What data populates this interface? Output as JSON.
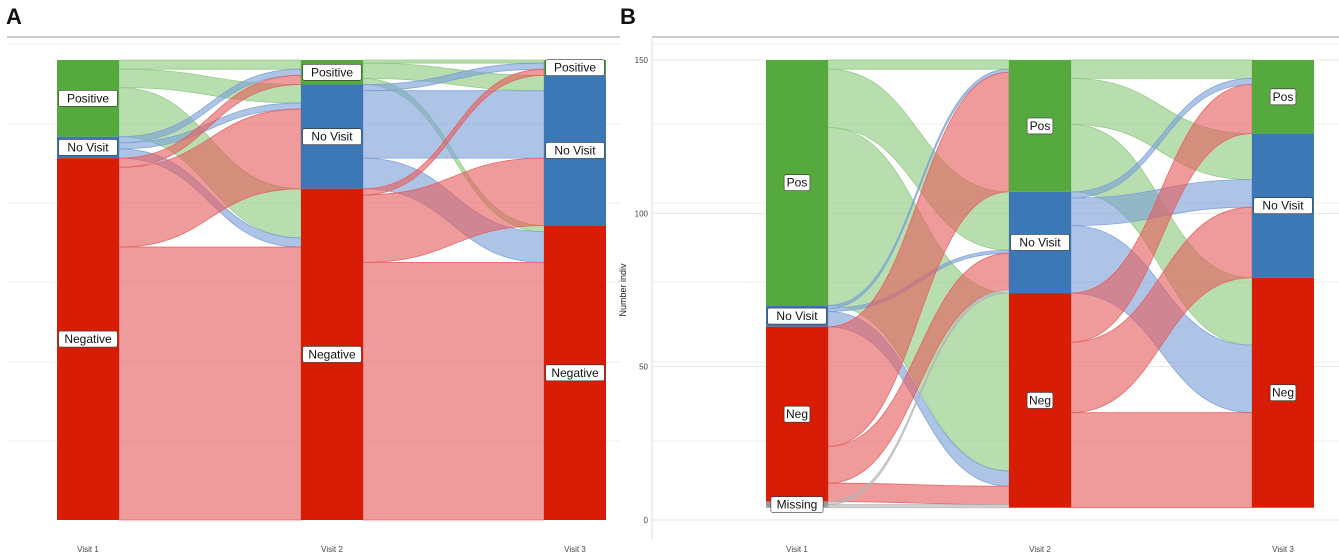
{
  "chart_data": [
    {
      "panel": "A",
      "type": "alluvial",
      "categories": [
        "Visit 1",
        "Visit 2",
        "Visit 3"
      ],
      "ylabel": "",
      "ylim": [
        0,
        150
      ],
      "yticks": [],
      "grid": true,
      "stacks": [
        [
          {
            "label": "Positive",
            "value": 25,
            "color": "#56aa3d"
          },
          {
            "label": "No Visit",
            "value": 7,
            "color": "#3c77b6"
          },
          {
            "label": "Negative",
            "value": 118,
            "color": "#d81d06"
          }
        ],
        [
          {
            "label": "Positive",
            "value": 8,
            "color": "#56aa3d"
          },
          {
            "label": "No Visit",
            "value": 34,
            "color": "#3c77b6"
          },
          {
            "label": "Negative",
            "value": 108,
            "color": "#d81d06"
          }
        ],
        [
          {
            "label": "Positive",
            "value": 5,
            "color": "#56aa3d"
          },
          {
            "label": "No Visit",
            "value": 49,
            "color": "#3c77b6"
          },
          {
            "label": "Negative",
            "value": 96,
            "color": "#d81d06"
          }
        ]
      ],
      "flows": [
        [
          {
            "from": "Positive",
            "to": "Positive",
            "value": 3
          },
          {
            "from": "Positive",
            "to": "No Visit",
            "value": 6
          },
          {
            "from": "Positive",
            "to": "Negative",
            "value": 16
          },
          {
            "from": "No Visit",
            "to": "Positive",
            "value": 2
          },
          {
            "from": "No Visit",
            "to": "No Visit",
            "value": 2
          },
          {
            "from": "No Visit",
            "to": "Negative",
            "value": 3
          },
          {
            "from": "Negative",
            "to": "Positive",
            "value": 3
          },
          {
            "from": "Negative",
            "to": "No Visit",
            "value": 26
          },
          {
            "from": "Negative",
            "to": "Negative",
            "value": 89
          }
        ],
        [
          {
            "from": "Positive",
            "to": "Positive",
            "value": 1
          },
          {
            "from": "Positive",
            "to": "No Visit",
            "value": 5
          },
          {
            "from": "Positive",
            "to": "Negative",
            "value": 2
          },
          {
            "from": "No Visit",
            "to": "Positive",
            "value": 2
          },
          {
            "from": "No Visit",
            "to": "No Visit",
            "value": 22
          },
          {
            "from": "No Visit",
            "to": "Negative",
            "value": 10
          },
          {
            "from": "Negative",
            "to": "Positive",
            "value": 2
          },
          {
            "from": "Negative",
            "to": "No Visit",
            "value": 22
          },
          {
            "from": "Negative",
            "to": "Negative",
            "value": 84
          }
        ]
      ]
    },
    {
      "panel": "B",
      "type": "alluvial",
      "categories": [
        "Visit 1",
        "Visit 2",
        "Visit 3"
      ],
      "ylabel": "Number indiv",
      "ylim": [
        0,
        150
      ],
      "yticks": [
        0,
        50,
        100,
        150
      ],
      "grid": true,
      "stacks": [
        [
          {
            "label": "Pos",
            "value": 80,
            "color": "#56aa3d"
          },
          {
            "label": "No Visit",
            "value": 7,
            "color": "#3c77b6"
          },
          {
            "label": "Neg",
            "value": 57,
            "color": "#d81d06"
          },
          {
            "label": "Missing",
            "value": 2,
            "color": "#9a9a9a"
          }
        ],
        [
          {
            "label": "Pos",
            "value": 43,
            "color": "#56aa3d"
          },
          {
            "label": "No Visit",
            "value": 33,
            "color": "#3c77b6"
          },
          {
            "label": "Neg",
            "value": 70,
            "color": "#d81d06"
          }
        ],
        [
          {
            "label": "Pos",
            "value": 24,
            "color": "#56aa3d"
          },
          {
            "label": "No Visit",
            "value": 47,
            "color": "#3c77b6"
          },
          {
            "label": "Neg",
            "value": 75,
            "color": "#d81d06"
          }
        ]
      ],
      "flows": [
        [
          {
            "from": "Pos",
            "to": "Pos",
            "value": 3
          },
          {
            "from": "Pos",
            "to": "No Visit",
            "value": 19
          },
          {
            "from": "Pos",
            "to": "Neg",
            "value": 58
          },
          {
            "from": "No Visit",
            "to": "Pos",
            "value": 1
          },
          {
            "from": "No Visit",
            "to": "No Visit",
            "value": 1
          },
          {
            "from": "No Visit",
            "to": "Neg",
            "value": 5
          },
          {
            "from": "Neg",
            "to": "Pos",
            "value": 39
          },
          {
            "from": "Neg",
            "to": "No Visit",
            "value": 12
          },
          {
            "from": "Neg",
            "to": "Neg",
            "value": 6
          },
          {
            "from": "Missing",
            "to": "No Visit",
            "value": 1
          },
          {
            "from": "Missing",
            "to": "Neg",
            "value": 1
          }
        ],
        [
          {
            "from": "Pos",
            "to": "Pos",
            "value": 6
          },
          {
            "from": "Pos",
            "to": "No Visit",
            "value": 15
          },
          {
            "from": "Pos",
            "to": "Neg",
            "value": 22
          },
          {
            "from": "No Visit",
            "to": "Pos",
            "value": 2
          },
          {
            "from": "No Visit",
            "to": "No Visit",
            "value": 9
          },
          {
            "from": "No Visit",
            "to": "Neg",
            "value": 22
          },
          {
            "from": "Neg",
            "to": "Pos",
            "value": 16
          },
          {
            "from": "Neg",
            "to": "No Visit",
            "value": 23
          },
          {
            "from": "Neg",
            "to": "Neg",
            "value": 31
          }
        ]
      ]
    }
  ]
}
